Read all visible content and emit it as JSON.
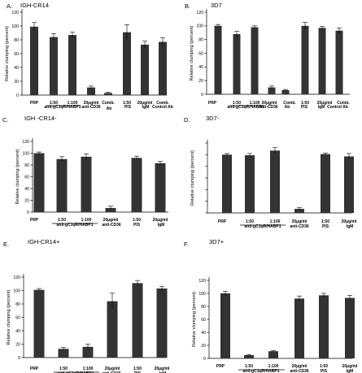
{
  "chart_data": [
    {
      "type": "bar",
      "panel_label": "A.",
      "title": "IGH-CR14",
      "ylabel": "Relative clumping (percent)",
      "ylim": [
        0,
        120
      ],
      "yticks": [
        "0",
        "20",
        "40",
        "60",
        "80",
        "100",
        "120"
      ],
      "categories": [
        "PRP",
        "1:50",
        "1:100",
        "20µg/ml",
        "Comb.",
        "1:50",
        "20µg/ml",
        "Comb."
      ],
      "values": [
        99,
        84,
        87,
        11,
        3,
        91,
        73,
        77
      ],
      "errors": [
        6,
        5,
        4,
        2,
        1,
        11,
        5,
        6
      ],
      "group_labels": [
        "anti-gC1qR/HABP1",
        "anti-CD36",
        "Ab",
        "PIS",
        "IgM",
        "Control Ab"
      ]
    },
    {
      "type": "bar",
      "panel_label": "B.",
      "title": "3D7",
      "ylabel": "Relative clumping (percent)",
      "ylim": [
        0,
        120
      ],
      "yticks": [
        "0",
        "20",
        "40",
        "60",
        "80",
        "100",
        "120"
      ],
      "categories": [
        "PRP",
        "1:50",
        "1:100",
        "20µg/ml",
        "Comb.",
        "1:50",
        "20µg/ml",
        "Comb."
      ],
      "values": [
        100,
        88,
        98,
        10,
        6,
        100,
        97,
        93
      ],
      "errors": [
        2,
        4,
        2,
        2,
        1,
        5,
        2,
        4
      ],
      "group_labels": [
        "anti-gC1qR/HABP1",
        "anti-CD36",
        "Ab",
        "PIS",
        "IgM",
        "Control Ab"
      ]
    },
    {
      "type": "bar",
      "panel_label": "C.",
      "title": "IGH -CR14-",
      "ylabel": "Relative clumping (percent)",
      "ylim": [
        0,
        120
      ],
      "yticks": [
        "0",
        "20",
        "40",
        "60",
        "80",
        "100",
        "120"
      ],
      "categories": [
        "PRP",
        "1:50",
        "1:100",
        "20µg/ml",
        "1:50",
        "20µg/ml"
      ],
      "values": [
        100,
        90,
        94,
        7,
        92,
        83
      ],
      "errors": [
        2,
        4,
        5,
        3,
        3,
        3
      ],
      "group_labels": [
        "anti-gC1qR/HABP1",
        "anti-CD36",
        "PIS",
        "IgM"
      ]
    },
    {
      "type": "bar",
      "panel_label": "D.",
      "title": "3D7-",
      "ylabel": "Relative clumping (percent)",
      "ylim": [
        0,
        120
      ],
      "yticks": [],
      "categories": [
        "PRP",
        "1:50",
        "1:100",
        "20µg/ml",
        "1:50",
        "20µg/ml"
      ],
      "values": [
        100,
        99,
        107,
        7,
        101,
        97
      ],
      "errors": [
        2,
        3,
        5,
        2,
        2,
        5
      ],
      "group_labels": [
        "anti-gC1qR/HABP1",
        "anti-CD36",
        "PIS",
        "IgM"
      ]
    },
    {
      "type": "bar",
      "panel_label": "E.",
      "title": "IGH-CR14+",
      "ylabel": "Relative clumping (percent)",
      "ylim": [
        0,
        120
      ],
      "yticks": [
        "0",
        "20",
        "40",
        "60",
        "80",
        "100",
        "120"
      ],
      "categories": [
        "PRP",
        "1:50",
        "1:100",
        "20µg/ml",
        "1:50",
        "20µg/ml"
      ],
      "values": [
        101,
        13,
        16,
        84,
        111,
        103
      ],
      "errors": [
        2,
        2,
        4,
        12,
        4,
        3
      ],
      "group_labels": [
        "anti-gC1qR/HABP1",
        "anti-CD36",
        "PIS",
        "IgM"
      ]
    },
    {
      "type": "bar",
      "panel_label": "F.",
      "title": "3D7+",
      "ylabel": "Relative clumping (percent)",
      "ylim": [
        0,
        120
      ],
      "yticks": [
        "0",
        "20",
        "40",
        "60",
        "80",
        "100",
        "120"
      ],
      "categories": [
        "PRP",
        "1:50",
        "1:100",
        "20µg/ml",
        "1:50",
        "20µg/ml"
      ],
      "values": [
        100,
        5,
        11,
        92,
        97,
        93
      ],
      "errors": [
        3,
        1,
        1,
        4,
        3,
        4
      ],
      "group_labels": [
        "anti-gC1qR/HABP1",
        "anti-CD36",
        "PIS",
        "IgM"
      ]
    }
  ]
}
